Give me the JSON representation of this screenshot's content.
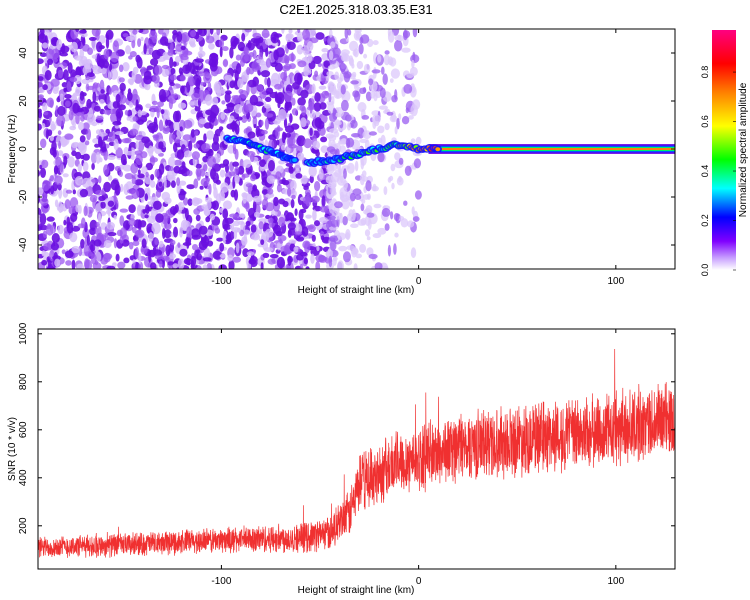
{
  "title": "C2E1.2025.318.03.35.E31",
  "chart_data": [
    {
      "type": "heatmap",
      "title": "C2E1.2025.318.03.35.E31",
      "xlabel": "Height of straight line (km)",
      "ylabel": "Frequency (Hz)",
      "xlim": [
        -193,
        130
      ],
      "ylim": [
        -50,
        50
      ],
      "xticks": [
        -100,
        0,
        100
      ],
      "xtick_labels": [
        "-100",
        "0",
        "100"
      ],
      "yticks": [
        -40,
        -20,
        0,
        20,
        40
      ],
      "ytick_labels": [
        "-40",
        "-20",
        "0",
        "20",
        "40"
      ],
      "colorbar": {
        "label": "Normalized spectral amplitude",
        "range": [
          0,
          0.97
        ],
        "ticks": [
          0.0,
          0.2,
          0.4,
          0.6,
          0.8
        ],
        "tick_labels": [
          "0.0",
          "0.2",
          "0.4",
          "0.6",
          "0.8"
        ],
        "colormap": [
          "#ffffff",
          "#8000ff",
          "#0000ff",
          "#00ffff",
          "#00ff00",
          "#ffff00",
          "#ff8000",
          "#ff0000",
          "#ff0080"
        ]
      },
      "trace": {
        "x": [
          -95,
          -85,
          -75,
          -65,
          -55,
          -50,
          -40,
          -30,
          -20,
          -15,
          -10,
          -5,
          0,
          10,
          20,
          60,
          100,
          130
        ],
        "y": [
          4,
          2,
          -1,
          -4,
          -6,
          -5,
          -4,
          -2,
          0,
          1,
          2,
          1,
          0,
          0,
          0,
          0,
          0,
          0
        ],
        "amplitude": [
          0.3,
          0.35,
          0.35,
          0.25,
          0.3,
          0.3,
          0.35,
          0.4,
          0.45,
          0.5,
          0.5,
          0.6,
          0.7,
          0.85,
          0.9,
          0.95,
          0.95,
          0.95
        ]
      },
      "noise_regions": [
        {
          "x_range": [
            -193,
            -45
          ],
          "density": "dense",
          "color": "#7a1fe8"
        },
        {
          "x_range": [
            -45,
            0
          ],
          "density": "sparse",
          "color": "#b98cf0"
        }
      ]
    },
    {
      "type": "line",
      "xlabel": "Height of straight line (km)",
      "ylabel": "SNR (10 * v/v)",
      "xlim": [
        -193,
        130
      ],
      "ylim": [
        20,
        1020
      ],
      "xticks": [
        -100,
        0,
        100
      ],
      "xtick_labels": [
        "-100",
        "0",
        "100"
      ],
      "yticks": [
        200,
        400,
        600,
        800,
        1000
      ],
      "ytick_labels": [
        "200",
        "400",
        "600",
        "800",
        "1000"
      ],
      "color": "#f03030",
      "series": [
        {
          "name": "SNR",
          "x": [
            -193,
            -150,
            -100,
            -60,
            -45,
            -35,
            -30,
            -20,
            -10,
            0,
            20,
            50,
            80,
            100,
            130
          ],
          "mean": [
            110,
            120,
            140,
            150,
            170,
            250,
            380,
            420,
            470,
            480,
            530,
            560,
            580,
            600,
            650
          ],
          "spread": [
            50,
            55,
            60,
            70,
            80,
            110,
            140,
            150,
            150,
            150,
            160,
            170,
            170,
            170,
            180
          ]
        }
      ]
    }
  ]
}
